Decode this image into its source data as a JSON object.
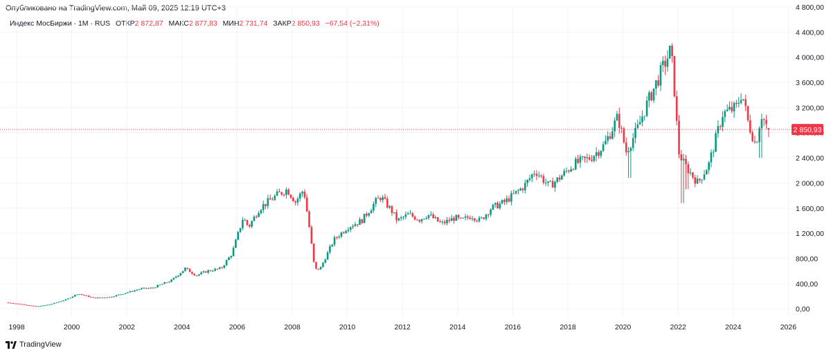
{
  "published": "Опубликовано на TradingView.com, Май 09, 2025 12:19 UTC+3",
  "legend": {
    "instrument": "Индекс МосБиржи · 1М · RUS",
    "open_label": "ОТКР",
    "open_value": "2 872,87",
    "high_label": "МАКС",
    "high_value": "2 877,83",
    "low_label": "МИН",
    "low_value": "2 731,74",
    "close_label": "ЗАКР",
    "close_value": "2 850,93",
    "change": "−67,54 (−2,31%)"
  },
  "last_price_label": "2 850,93",
  "brand": "TradingView",
  "colors": {
    "up": "#089981",
    "down": "#f23645",
    "grid": "#f0f3fa",
    "text": "#131722"
  },
  "chart_data": {
    "type": "candlestick",
    "title": "Индекс МосБиржи · 1М · RUS",
    "frequency": "monthly",
    "ylim": [
      -130,
      4800
    ],
    "y_ticks": [
      0,
      400,
      800,
      1200,
      1600,
      2000,
      2400,
      2800,
      3200,
      3600,
      4000,
      4400,
      4800
    ],
    "y_tick_labels": [
      "0,00",
      "400,00",
      "800,00",
      "1 200,00",
      "1 600,00",
      "2 000,00",
      "2 400,00",
      "2 800,00",
      "3 200,00",
      "3 600,00",
      "4 000,00",
      "4 400,00",
      "4 800,00"
    ],
    "x_ticks": [
      1998,
      2000,
      2002,
      2004,
      2006,
      2008,
      2010,
      2012,
      2014,
      2016,
      2018,
      2020,
      2022,
      2024,
      2026
    ],
    "x_tick_labels": [
      "1998",
      "2000",
      "2002",
      "2004",
      "2006",
      "2008",
      "2010",
      "2012",
      "2014",
      "2016",
      "2018",
      "2020",
      "2022",
      "2024",
      "2026"
    ],
    "last_price": 2850.93,
    "last_bar": {
      "open": 2872.87,
      "high": 2877.83,
      "low": 2731.74,
      "close": 2850.93
    },
    "anchors": [
      [
        1997.7,
        100
      ],
      [
        1998.3,
        70
      ],
      [
        1998.8,
        35
      ],
      [
        1999.3,
        70
      ],
      [
        1999.9,
        150
      ],
      [
        2000.3,
        240
      ],
      [
        2000.9,
        170
      ],
      [
        2001.5,
        190
      ],
      [
        2002.1,
        260
      ],
      [
        2002.6,
        320
      ],
      [
        2003.0,
        330
      ],
      [
        2003.7,
        450
      ],
      [
        2004.2,
        640
      ],
      [
        2004.6,
        530
      ],
      [
        2005.0,
        600
      ],
      [
        2005.5,
        640
      ],
      [
        2005.9,
        880
      ],
      [
        2006.3,
        1450
      ],
      [
        2006.5,
        1300
      ],
      [
        2006.9,
        1600
      ],
      [
        2007.5,
        1800
      ],
      [
        2007.9,
        1900
      ],
      [
        2008.2,
        1700
      ],
      [
        2008.5,
        1900
      ],
      [
        2008.7,
        1300
      ],
      [
        2008.9,
        620
      ],
      [
        2009.1,
        640
      ],
      [
        2009.6,
        1100
      ],
      [
        2010.1,
        1300
      ],
      [
        2010.6,
        1400
      ],
      [
        2011.1,
        1700
      ],
      [
        2011.3,
        1780
      ],
      [
        2011.7,
        1550
      ],
      [
        2011.9,
        1400
      ],
      [
        2012.3,
        1500
      ],
      [
        2012.7,
        1420
      ],
      [
        2013.0,
        1500
      ],
      [
        2013.5,
        1350
      ],
      [
        2014.0,
        1450
      ],
      [
        2014.2,
        1400
      ],
      [
        2014.6,
        1480
      ],
      [
        2014.9,
        1400
      ],
      [
        2015.3,
        1600
      ],
      [
        2015.8,
        1700
      ],
      [
        2016.5,
        1950
      ],
      [
        2016.9,
        2200
      ],
      [
        2017.4,
        1950
      ],
      [
        2017.7,
        2050
      ],
      [
        2018.3,
        2300
      ],
      [
        2018.9,
        2400
      ],
      [
        2019.4,
        2600
      ],
      [
        2019.9,
        3050
      ],
      [
        2020.2,
        2500
      ],
      [
        2020.6,
        2850
      ],
      [
        2020.9,
        3200
      ],
      [
        2021.3,
        3600
      ],
      [
        2021.8,
        4100
      ],
      [
        2021.9,
        3800
      ],
      [
        2022.1,
        2500
      ],
      [
        2022.3,
        2300
      ],
      [
        2022.8,
        2000
      ],
      [
        2023.2,
        2300
      ],
      [
        2023.7,
        3100
      ],
      [
        2024.2,
        3200
      ],
      [
        2024.4,
        3450
      ],
      [
        2024.6,
        3000
      ],
      [
        2024.9,
        2600
      ],
      [
        2025.1,
        3100
      ],
      [
        2025.25,
        2950
      ],
      [
        2025.35,
        2850.93
      ]
    ],
    "spikes": [
      [
        2020.2,
        2080
      ],
      [
        2022.15,
        1680
      ],
      [
        2022.3,
        1900
      ],
      [
        2025.0,
        2400
      ]
    ]
  }
}
